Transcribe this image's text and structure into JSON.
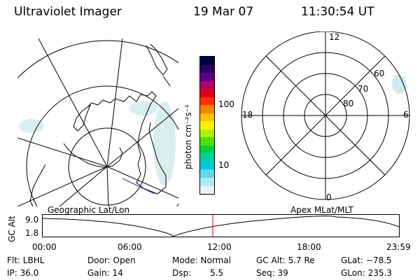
{
  "header": {
    "instrument": "Ultraviolet Imager",
    "date": "19 Mar 07",
    "time": "11:30:54 UT"
  },
  "geo_panel": {
    "label": "Geographic Lat/Lon"
  },
  "colorbar": {
    "unit_label": "photon cm⁻²s⁻¹",
    "tick_labels": [
      "100",
      "10"
    ],
    "colors": [
      "#000040",
      "#2a0060",
      "#5a0080",
      "#b00070",
      "#d8001a",
      "#ff3000",
      "#ff8000",
      "#ffc000",
      "#fff000",
      "#b0f000",
      "#50e000",
      "#00d040",
      "#00d0a0",
      "#00c8d8",
      "#60d8e8",
      "#b0e8f0",
      "#e8f4f4"
    ]
  },
  "polar_panel": {
    "label": "Apex MLat/MLT",
    "mlt_labels": [
      "12",
      "18",
      "6",
      "0"
    ],
    "lat_labels": [
      "60",
      "70",
      "80"
    ]
  },
  "alt_plot": {
    "ylabel": "GC Alt",
    "y_ticks": [
      "9.0",
      "1.8"
    ],
    "x_ticks": [
      "00:00",
      "06:00",
      "12:00",
      "18:00",
      "23:59"
    ],
    "current_time_marker": "11:30:54"
  },
  "info": {
    "filter": "Flt: LBHL",
    "ip": "IP: 36.0",
    "door": "Door: Open",
    "gain": "Gain: 14",
    "mode": "Mode: Normal",
    "dsp_label": "Dsp:",
    "dsp_value": "5.5",
    "gc_alt": "GC Alt: 5.7 Re",
    "seq": "Seq: 39",
    "glat": "GLat: −78.5",
    "glon": "GLon: 235.3"
  },
  "colors": {
    "line": "#000000",
    "marker": "#cc0000",
    "coast": "#000000",
    "haze": "#c8e6e6"
  }
}
